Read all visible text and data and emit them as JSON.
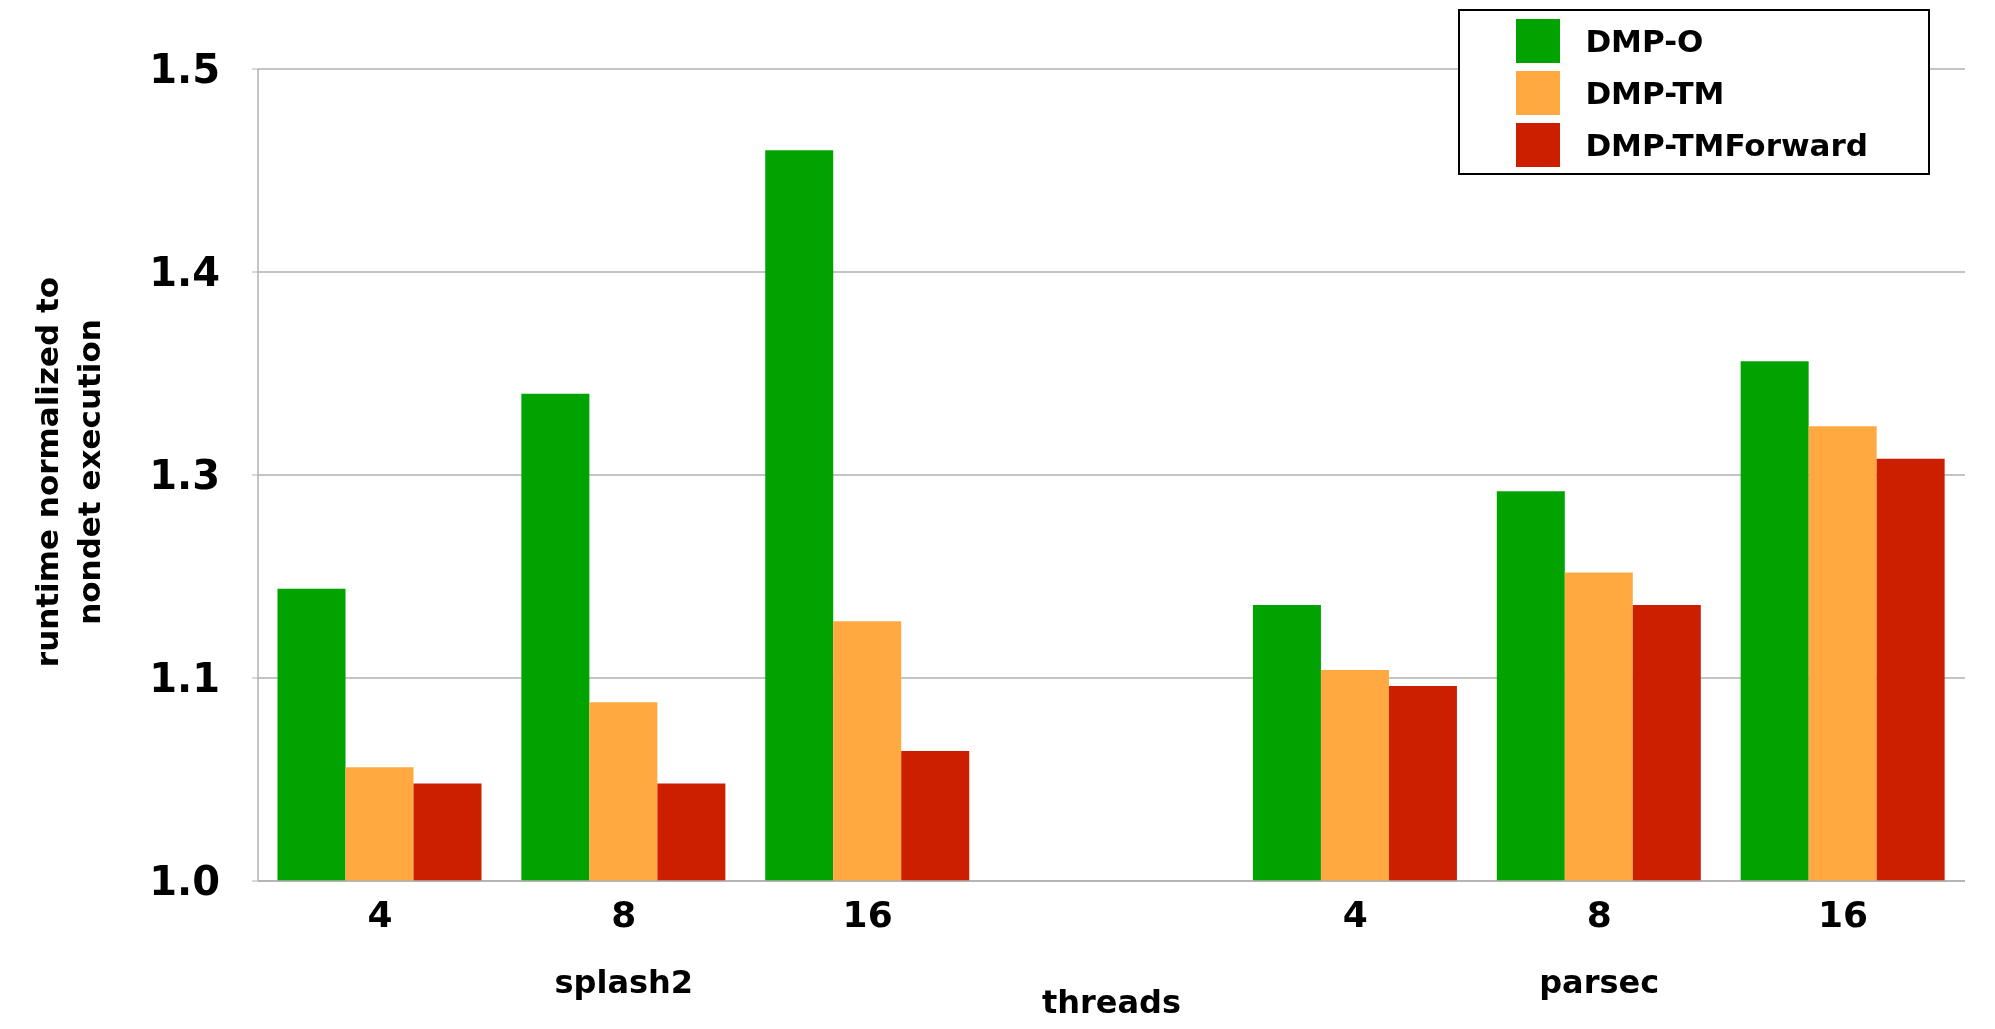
{
  "chart_data": {
    "type": "bar",
    "xlabel": "threads",
    "ylabel": "runtime normalized to nondet execution",
    "categories": [
      "4",
      "8",
      "16",
      null,
      "4",
      "8",
      "16"
    ],
    "series": [
      {
        "name": "DMP-O",
        "color": "#00a300",
        "values": [
          1.18,
          1.3,
          1.45,
          null,
          1.17,
          1.24,
          1.32
        ]
      },
      {
        "name": "DMP-TM",
        "color": "#ffa940",
        "values": [
          1.07,
          1.11,
          1.16,
          null,
          1.13,
          1.19,
          1.28
        ]
      },
      {
        "name": "DMP-TMForward",
        "color": "#cc1f00",
        "values": [
          1.06,
          1.06,
          1.08,
          null,
          1.12,
          1.17,
          1.26
        ]
      }
    ],
    "ylim": [
      1.0,
      1.5
    ],
    "yticks": [
      {
        "value": 1.0,
        "label": "1.0"
      },
      {
        "value": 1.125,
        "label": "1.1"
      },
      {
        "value": 1.25,
        "label": "1.3"
      },
      {
        "value": 1.375,
        "label": "1.4"
      },
      {
        "value": 1.5,
        "label": "1.5"
      }
    ],
    "grid": "y",
    "legend": "top right",
    "annotations": [
      "splash2",
      "parsec"
    ]
  }
}
